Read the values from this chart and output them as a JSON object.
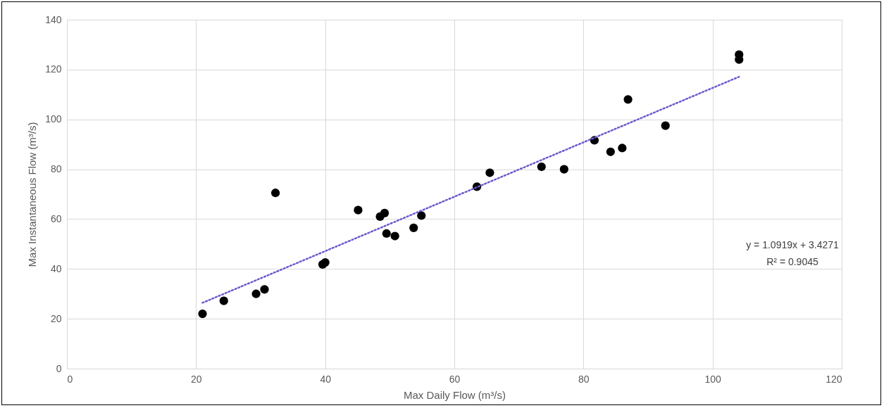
{
  "chart_data": {
    "type": "scatter",
    "xlabel": "Max Daily Flow (m³/s)",
    "ylabel": "Max Instantaneous Flow (m³/s)",
    "xlim": [
      0,
      120
    ],
    "xticks": [
      0,
      20,
      40,
      60,
      80,
      100,
      120
    ],
    "ylim": [
      0,
      140
    ],
    "yticks": [
      0,
      20,
      40,
      60,
      80,
      100,
      120,
      140
    ],
    "grid": true,
    "marker": "circle",
    "series": [
      {
        "color": "#000000",
        "x": [
          21,
          24.3,
          29.3,
          30.6,
          32.3,
          39.6,
          40,
          45.1,
          48.5,
          49.2,
          49.5,
          50.8,
          53.7,
          54.9,
          63.5,
          65.5,
          73.5,
          77,
          81.7,
          84.2,
          86,
          86.9,
          92.7,
          104.1,
          104.1
        ],
        "values": [
          22,
          27.2,
          30,
          31.8,
          70.5,
          41.8,
          42.6,
          63.6,
          61,
          62.4,
          54.2,
          53.2,
          56.5,
          61.4,
          73,
          78.6,
          81,
          80,
          91.6,
          87,
          88.5,
          108,
          97.5,
          126,
          124
        ]
      },
      {
        "type": "line",
        "color": "#6a5acd",
        "line_style": "dotted",
        "marker": "none",
        "x": [
          21,
          104.1
        ],
        "values": [
          26.4,
          117.1
        ]
      }
    ],
    "annotations": [
      "y = 1.0919x + 3.4271",
      "R² = 0.9045"
    ]
  }
}
